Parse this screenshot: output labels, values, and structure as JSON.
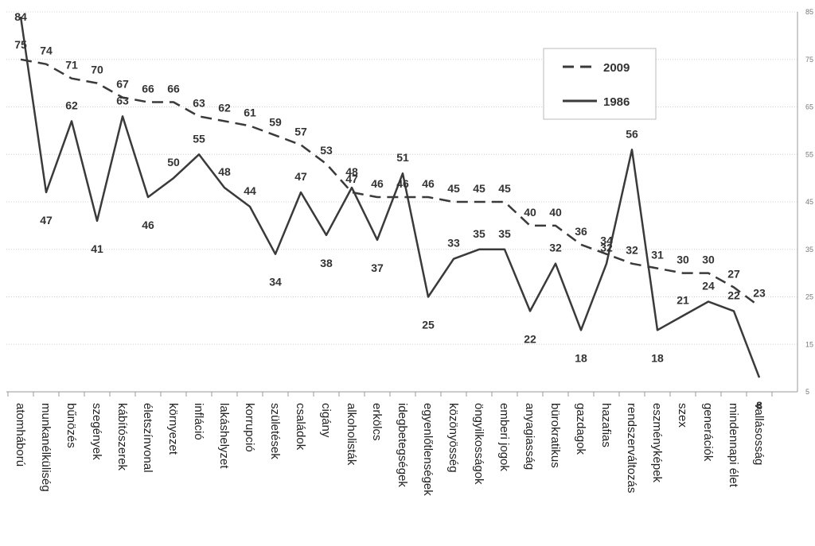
{
  "chart_data": {
    "type": "line",
    "categories": [
      "atomháború",
      "munkanélküliség",
      "bűnözés",
      "szegények",
      "kábítószerek",
      "életszínvonal",
      "környezet",
      "infláció",
      "lakáshelyzet",
      "korrupció",
      "születések",
      "családok",
      "cigány",
      "alkoholisták",
      "erkölcs",
      "idegbetegségek",
      "egyenlőtlenségek",
      "közönyösség",
      "öngyilkosságok",
      "emberi jogok",
      "anyagiasság",
      "bürokratikus",
      "gazdagok",
      "hazafias",
      "rendszerváltozás",
      "eszményképek",
      "szex",
      "generációk",
      "mindennapi élet",
      "vallásosság"
    ],
    "series": [
      {
        "name": "2009",
        "style": "dashed",
        "values": [
          75,
          74,
          71,
          70,
          67,
          66,
          66,
          63,
          62,
          61,
          59,
          57,
          53,
          47,
          46,
          46,
          46,
          45,
          45,
          45,
          40,
          40,
          36,
          34,
          32,
          31,
          30,
          30,
          27,
          23
        ]
      },
      {
        "name": "1986",
        "style": "solid",
        "values": [
          84,
          47,
          62,
          41,
          63,
          46,
          50,
          55,
          48,
          44,
          34,
          47,
          38,
          48,
          37,
          51,
          25,
          33,
          35,
          35,
          22,
          32,
          18,
          32,
          56,
          18,
          21,
          24,
          22,
          8
        ]
      }
    ],
    "data_labels": {
      "2009": [
        "75",
        "74",
        "71",
        "70",
        "67",
        "66",
        "66",
        "63",
        "62",
        "61",
        "59",
        "57",
        "53",
        "47",
        "46",
        "46",
        "46",
        "45",
        "45",
        "45",
        "40",
        "40",
        "36",
        "34",
        "32",
        "31",
        "30",
        "30",
        "27",
        "23"
      ],
      "1986": [
        "84",
        "47",
        "62",
        "41",
        "63",
        "46",
        "50",
        "55",
        "48",
        "44",
        "34",
        "47",
        "38",
        "48",
        "37",
        "51",
        "25",
        "33",
        "35",
        "35",
        "22",
        "32",
        "18",
        "32",
        "56",
        "18",
        "21",
        "24",
        "22",
        "8"
      ]
    },
    "yticks": [
      "5",
      "15",
      "25",
      "35",
      "45",
      "55",
      "65",
      "75",
      "85"
    ],
    "ylim": [
      5,
      85
    ],
    "grid": true,
    "legend_position": "top-right",
    "title": "",
    "xlabel": "",
    "ylabel": ""
  },
  "colors": {
    "line": "#3a3a3a",
    "grid": "#d0d0d0",
    "axis": "#999999",
    "text": "#333333"
  }
}
